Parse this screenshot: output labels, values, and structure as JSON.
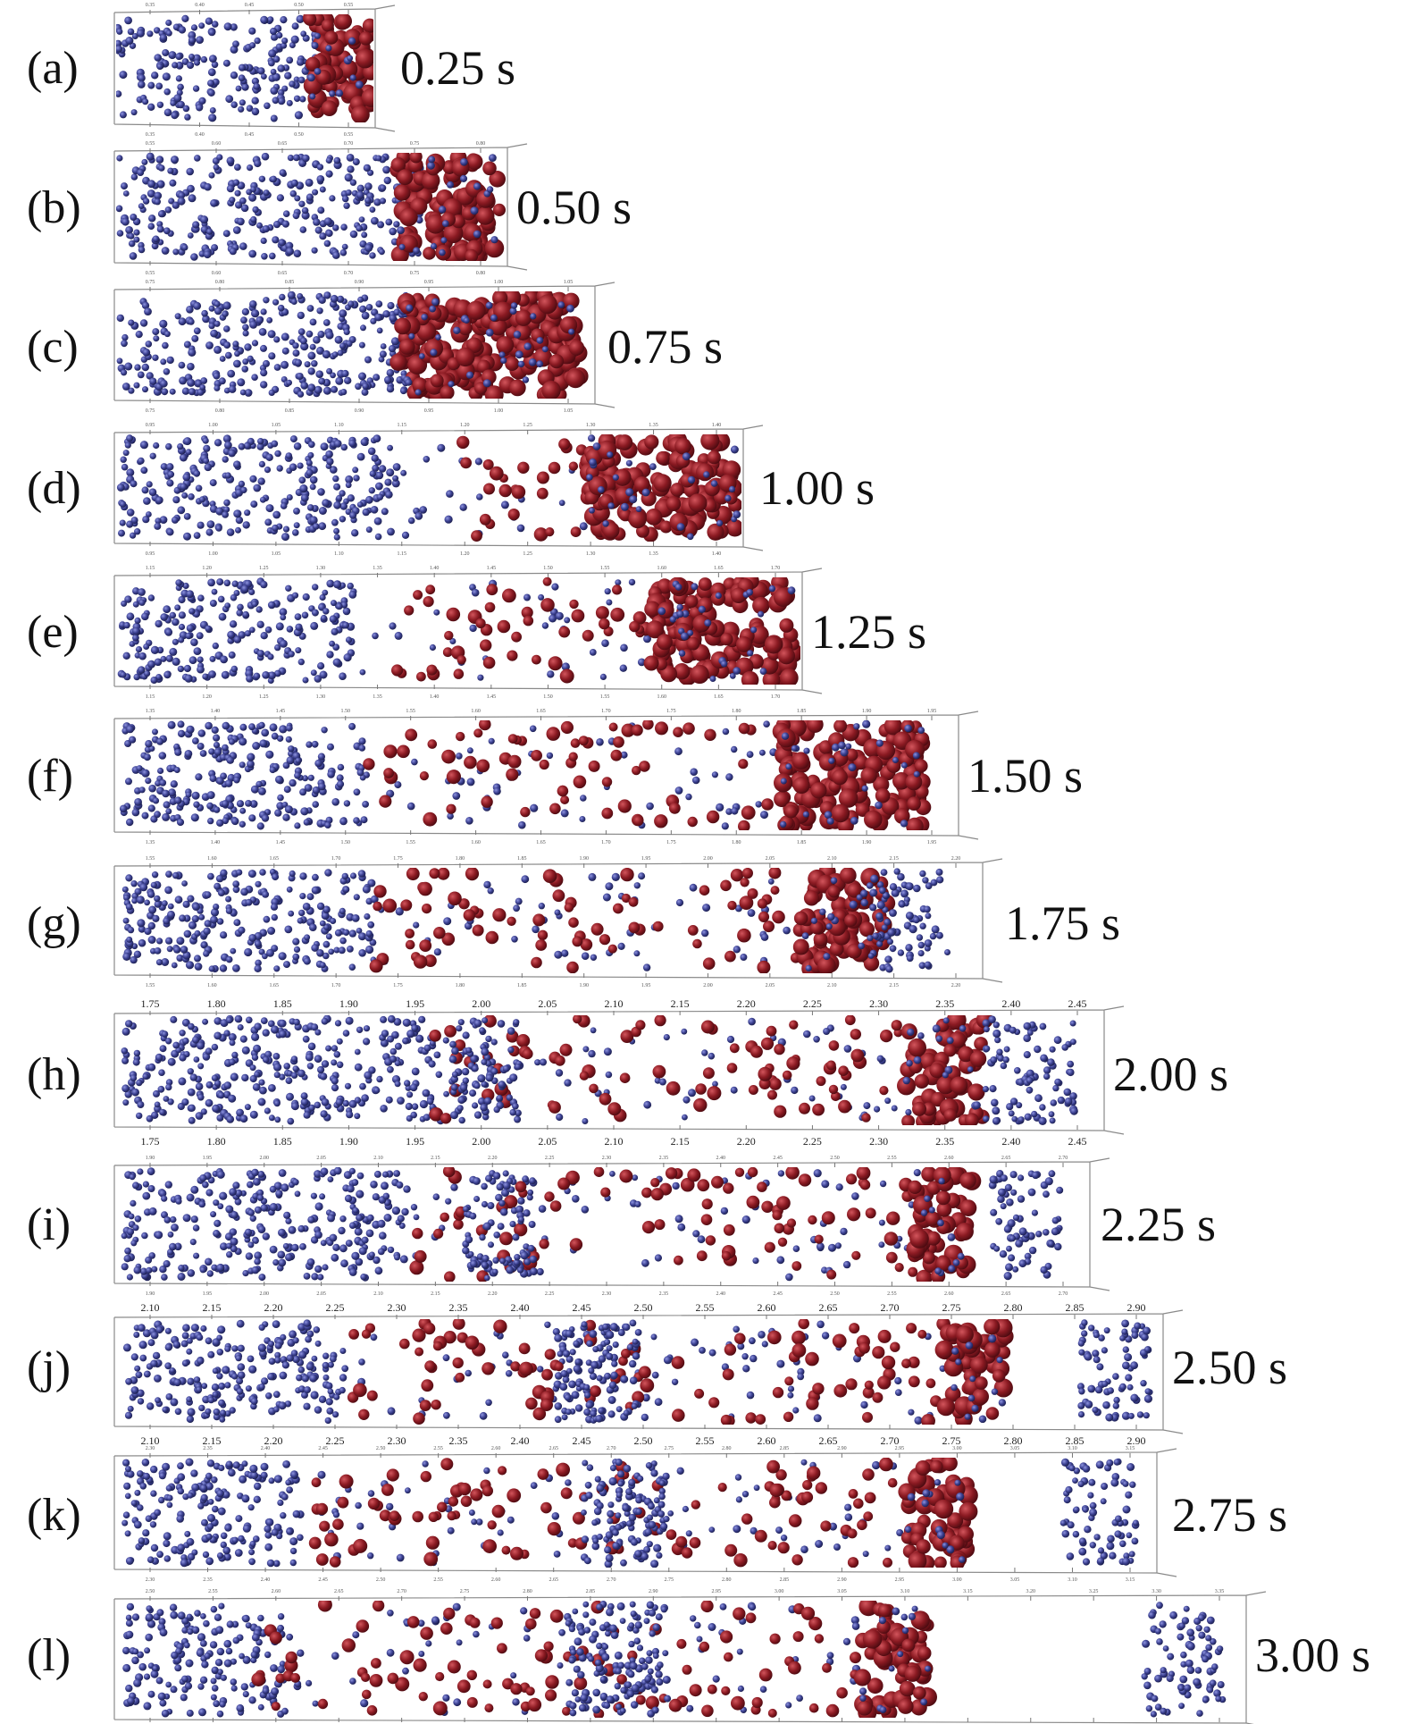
{
  "figure": {
    "colors": {
      "light_particles": "#3a3f8f",
      "heavy_particles": "#8b1a22",
      "frame": "#8a8a8a",
      "text": "#111111"
    },
    "panels": [
      {
        "label": "(a)",
        "time": "0.25 s",
        "ticks": [
          "0.35",
          "0.40",
          "0.45",
          "0.50",
          "0.55"
        ]
      },
      {
        "label": "(b)",
        "time": "0.50 s",
        "ticks": [
          "0.55",
          "0.60",
          "0.65",
          "0.70",
          "0.75",
          "0.80"
        ]
      },
      {
        "label": "(c)",
        "time": "0.75 s",
        "ticks": [
          "0.75",
          "0.80",
          "0.85",
          "0.90",
          "0.95",
          "1.00",
          "1.05"
        ]
      },
      {
        "label": "(d)",
        "time": "1.00 s",
        "ticks": [
          "0.95",
          "1.00",
          "1.05",
          "1.10",
          "1.15",
          "1.20",
          "1.25",
          "1.30",
          "1.35",
          "1.40"
        ]
      },
      {
        "label": "(e)",
        "time": "1.25 s",
        "ticks": [
          "1.15",
          "1.20",
          "1.25",
          "1.30",
          "1.35",
          "1.40",
          "1.45",
          "1.50",
          "1.55",
          "1.60",
          "1.65",
          "1.70"
        ]
      },
      {
        "label": "(f)",
        "time": "1.50 s",
        "ticks": [
          "1.35",
          "1.40",
          "1.45",
          "1.50",
          "1.55",
          "1.60",
          "1.65",
          "1.70",
          "1.75",
          "1.80",
          "1.85",
          "1.90",
          "1.95"
        ]
      },
      {
        "label": "(g)",
        "time": "1.75 s",
        "ticks": [
          "1.55",
          "1.60",
          "1.65",
          "1.70",
          "1.75",
          "1.80",
          "1.85",
          "1.90",
          "1.95",
          "2.00",
          "2.05",
          "2.10",
          "2.15",
          "2.20"
        ]
      },
      {
        "label": "(h)",
        "time": "2.00 s",
        "ticks": [
          "1.75",
          "1.80",
          "1.85",
          "1.90",
          "1.95",
          "2.00",
          "2.05",
          "2.10",
          "2.15",
          "2.20",
          "2.25",
          "2.30",
          "2.35",
          "2.40",
          "2.45"
        ]
      },
      {
        "label": "(i)",
        "time": "2.25 s",
        "ticks": [
          "1.90",
          "1.95",
          "2.00",
          "2.05",
          "2.10",
          "2.15",
          "2.20",
          "2.25",
          "2.30",
          "2.35",
          "2.40",
          "2.45",
          "2.50",
          "2.55",
          "2.60",
          "2.65",
          "2.70"
        ]
      },
      {
        "label": "(j)",
        "time": "2.50 s",
        "ticks": [
          "2.10",
          "2.15",
          "2.20",
          "2.25",
          "2.30",
          "2.35",
          "2.40",
          "2.45",
          "2.50",
          "2.55",
          "2.60",
          "2.65",
          "2.70",
          "2.75",
          "2.80",
          "2.85",
          "2.90"
        ]
      },
      {
        "label": "(k)",
        "time": "2.75 s",
        "ticks": [
          "2.30",
          "2.35",
          "2.40",
          "2.45",
          "2.50",
          "2.55",
          "2.60",
          "2.65",
          "2.70",
          "2.75",
          "2.80",
          "2.85",
          "2.90",
          "2.95",
          "3.00",
          "3.05",
          "3.10",
          "3.15"
        ]
      },
      {
        "label": "(l)",
        "time": "3.00 s",
        "ticks": [
          "2.50",
          "2.55",
          "2.60",
          "2.65",
          "2.70",
          "2.75",
          "2.80",
          "2.85",
          "2.90",
          "2.95",
          "3.00",
          "3.05",
          "3.10",
          "3.15",
          "3.20",
          "3.25",
          "3.30",
          "3.35"
        ]
      }
    ]
  }
}
